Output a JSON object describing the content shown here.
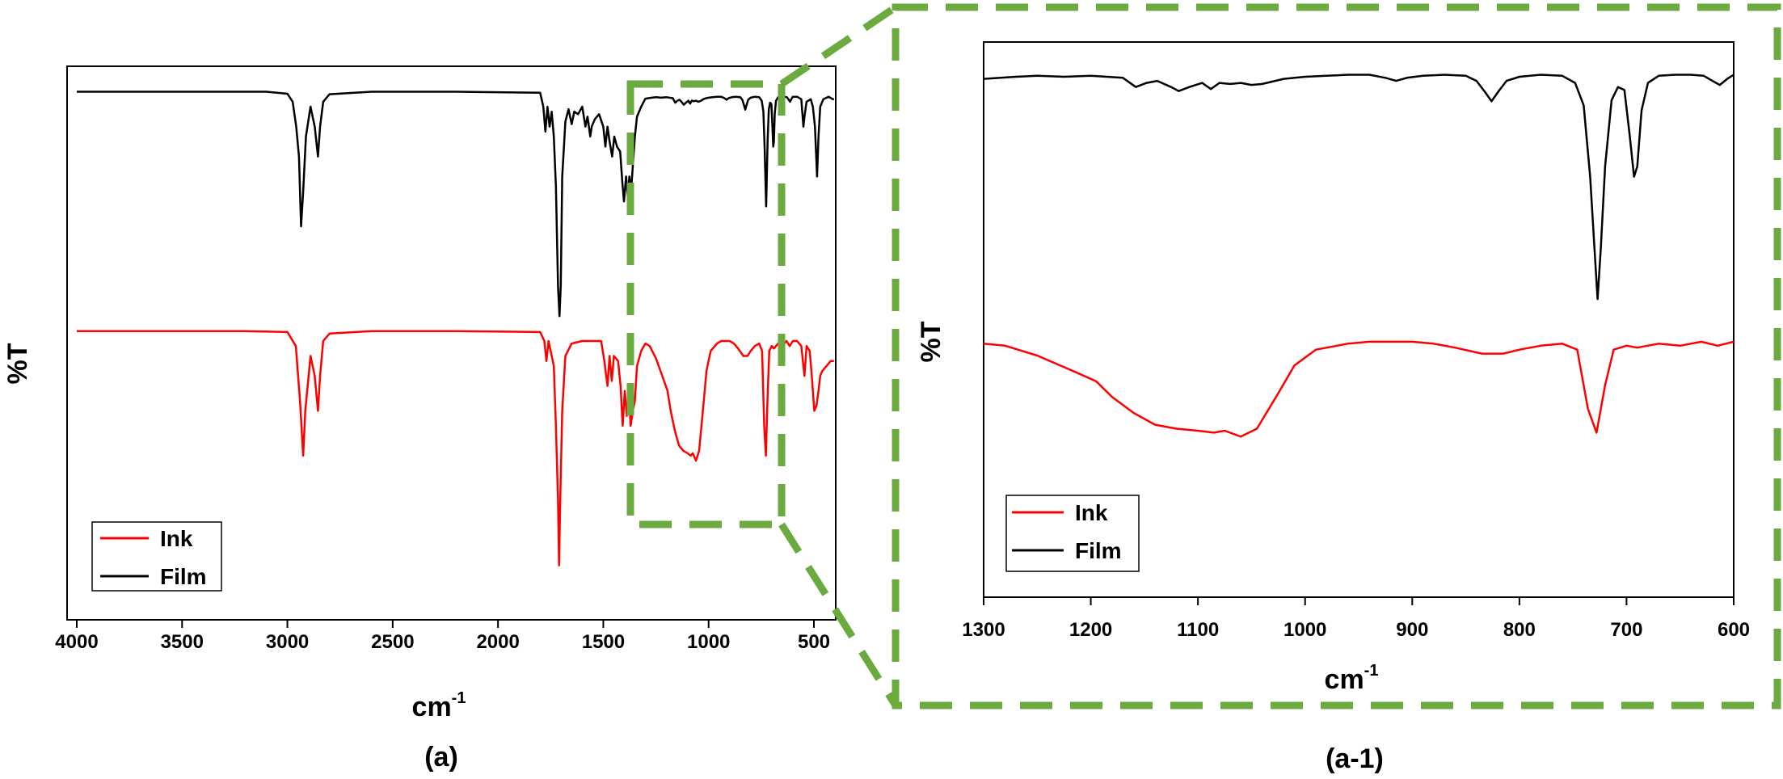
{
  "colors": {
    "ink": "#ff0000",
    "film": "#000000",
    "zoom_box": "#6aaa3f",
    "axis": "#000000"
  },
  "chart_data": [
    {
      "type": "line",
      "caption": "(a)",
      "xlabel": "cm",
      "xlabel_sup": "-1",
      "ylabel": "%T",
      "xlim": [
        4000,
        380
      ],
      "x_ticks": [
        4000,
        3500,
        3000,
        2500,
        2000,
        1500,
        1000,
        500
      ],
      "x_tick_labels": [
        "4000",
        "3500",
        "3000",
        "2500",
        "2000",
        "1500",
        "1000",
        "500"
      ],
      "ylim": [
        0,
        100
      ],
      "y_ticks_shown": false,
      "legend": {
        "placement": "bottom-left",
        "entries": [
          "Ink",
          "Film"
        ]
      },
      "zoom_region": {
        "x_range": [
          1300,
          600
        ]
      },
      "series": [
        {
          "name": "Ink",
          "color": "#ff0000",
          "baseline": 49,
          "points": [
            [
              4000,
              49
            ],
            [
              3500,
              49
            ],
            [
              3200,
              49
            ],
            [
              3000,
              48.8
            ],
            [
              2960,
              46
            ],
            [
              2940,
              35
            ],
            [
              2925,
              24
            ],
            [
              2915,
              33
            ],
            [
              2890,
              44
            ],
            [
              2870,
              40
            ],
            [
              2855,
              33
            ],
            [
              2845,
              40
            ],
            [
              2830,
              47
            ],
            [
              2800,
              48.5
            ],
            [
              2600,
              49
            ],
            [
              2200,
              49
            ],
            [
              1800,
              48.8
            ],
            [
              1780,
              47
            ],
            [
              1770,
              43
            ],
            [
              1760,
              47
            ],
            [
              1745,
              44
            ],
            [
              1735,
              42
            ],
            [
              1725,
              30
            ],
            [
              1715,
              15
            ],
            [
              1710,
              2
            ],
            [
              1705,
              14
            ],
            [
              1695,
              33
            ],
            [
              1680,
              44
            ],
            [
              1650,
              46.5
            ],
            [
              1600,
              47
            ],
            [
              1550,
              47
            ],
            [
              1510,
              47
            ],
            [
              1495,
              43
            ],
            [
              1480,
              38
            ],
            [
              1470,
              44
            ],
            [
              1460,
              39
            ],
            [
              1450,
              44
            ],
            [
              1430,
              43
            ],
            [
              1418,
              38
            ],
            [
              1408,
              30
            ],
            [
              1398,
              37
            ],
            [
              1388,
              32
            ],
            [
              1378,
              36
            ],
            [
              1370,
              30
            ],
            [
              1360,
              33
            ],
            [
              1350,
              35
            ],
            [
              1340,
              42
            ],
            [
              1320,
              45
            ],
            [
              1300,
              46.5
            ],
            [
              1280,
              46
            ],
            [
              1250,
              43.5
            ],
            [
              1220,
              40
            ],
            [
              1195,
              37
            ],
            [
              1180,
              33
            ],
            [
              1160,
              29
            ],
            [
              1140,
              26
            ],
            [
              1120,
              25
            ],
            [
              1100,
              24.5
            ],
            [
              1085,
              24
            ],
            [
              1075,
              24.5
            ],
            [
              1060,
              23
            ],
            [
              1045,
              25
            ],
            [
              1025,
              34
            ],
            [
              1010,
              41
            ],
            [
              990,
              45
            ],
            [
              960,
              46.5
            ],
            [
              940,
              47
            ],
            [
              920,
              47
            ],
            [
              900,
              47
            ],
            [
              880,
              46.5
            ],
            [
              860,
              45.5
            ],
            [
              835,
              44
            ],
            [
              815,
              44
            ],
            [
              800,
              45
            ],
            [
              780,
              46
            ],
            [
              760,
              46.5
            ],
            [
              746,
              45
            ],
            [
              736,
              30
            ],
            [
              728,
              24
            ],
            [
              720,
              36
            ],
            [
              712,
              45
            ],
            [
              700,
              46
            ],
            [
              690,
              45.5
            ],
            [
              670,
              46.5
            ],
            [
              650,
              46
            ],
            [
              630,
              47
            ],
            [
              615,
              46
            ],
            [
              600,
              47
            ],
            [
              580,
              47
            ],
            [
              560,
              46
            ],
            [
              545,
              40
            ],
            [
              535,
              46
            ],
            [
              520,
              45
            ],
            [
              510,
              40
            ],
            [
              498,
              33
            ],
            [
              488,
              34
            ],
            [
              478,
              37
            ],
            [
              470,
              40
            ],
            [
              460,
              41
            ],
            [
              440,
              42
            ],
            [
              420,
              43
            ],
            [
              405,
              43
            ]
          ]
        },
        {
          "name": "Film",
          "color": "#000000",
          "baseline": 97,
          "points": [
            [
              4000,
              97
            ],
            [
              3600,
              97
            ],
            [
              3300,
              97
            ],
            [
              3100,
              97
            ],
            [
              3000,
              96.6
            ],
            [
              2975,
              95
            ],
            [
              2958,
              90
            ],
            [
              2945,
              84
            ],
            [
              2935,
              70
            ],
            [
              2925,
              77
            ],
            [
              2912,
              88
            ],
            [
              2890,
              94
            ],
            [
              2870,
              90
            ],
            [
              2855,
              84
            ],
            [
              2845,
              90
            ],
            [
              2830,
              95
            ],
            [
              2800,
              96.5
            ],
            [
              2600,
              97
            ],
            [
              2200,
              97
            ],
            [
              1800,
              96.8
            ],
            [
              1785,
              94
            ],
            [
              1775,
              89
            ],
            [
              1765,
              94
            ],
            [
              1755,
              90
            ],
            [
              1745,
              93
            ],
            [
              1735,
              88
            ],
            [
              1725,
              78
            ],
            [
              1715,
              58
            ],
            [
              1708,
              52
            ],
            [
              1702,
              58
            ],
            [
              1695,
              80
            ],
            [
              1680,
              91
            ],
            [
              1665,
              93.5
            ],
            [
              1650,
              90.5
            ],
            [
              1638,
              93
            ],
            [
              1620,
              92.5
            ],
            [
              1600,
              94
            ],
            [
              1585,
              90
            ],
            [
              1575,
              92
            ],
            [
              1562,
              88
            ],
            [
              1555,
              90
            ],
            [
              1540,
              91.5
            ],
            [
              1520,
              92.5
            ],
            [
              1500,
              90
            ],
            [
              1490,
              86
            ],
            [
              1480,
              90
            ],
            [
              1470,
              87
            ],
            [
              1458,
              84
            ],
            [
              1448,
              88
            ],
            [
              1435,
              86
            ],
            [
              1420,
              85
            ],
            [
              1410,
              79
            ],
            [
              1402,
              75
            ],
            [
              1392,
              80
            ],
            [
              1384,
              76
            ],
            [
              1376,
              80
            ],
            [
              1368,
              77
            ],
            [
              1360,
              82
            ],
            [
              1350,
              88
            ],
            [
              1340,
              92
            ],
            [
              1320,
              94
            ],
            [
              1300,
              95.6
            ],
            [
              1270,
              95.8
            ],
            [
              1250,
              95.9
            ],
            [
              1225,
              95.8
            ],
            [
              1200,
              95.9
            ],
            [
              1170,
              95.7
            ],
            [
              1158,
              94.8
            ],
            [
              1148,
              95.2
            ],
            [
              1138,
              95.4
            ],
            [
              1125,
              94.8
            ],
            [
              1118,
              94.4
            ],
            [
              1108,
              94.8
            ],
            [
              1096,
              95.2
            ],
            [
              1088,
              94.6
            ],
            [
              1080,
              95.2
            ],
            [
              1070,
              95.1
            ],
            [
              1060,
              95.2
            ],
            [
              1050,
              95
            ],
            [
              1040,
              95.1
            ],
            [
              1032,
              95.3
            ],
            [
              1020,
              95.6
            ],
            [
              1000,
              95.8
            ],
            [
              980,
              95.9
            ],
            [
              960,
              96
            ],
            [
              940,
              96
            ],
            [
              925,
              95.7
            ],
            [
              915,
              95.4
            ],
            [
              905,
              95.7
            ],
            [
              890,
              95.9
            ],
            [
              870,
              96
            ],
            [
              850,
              95.9
            ],
            [
              840,
              95.4
            ],
            [
              832,
              94.3
            ],
            [
              826,
              93.4
            ],
            [
              820,
              94.3
            ],
            [
              812,
              95.4
            ],
            [
              800,
              95.8
            ],
            [
              780,
              96
            ],
            [
              760,
              95.9
            ],
            [
              748,
              95.2
            ],
            [
              740,
              93
            ],
            [
              734,
              86
            ],
            [
              730,
              79
            ],
            [
              727,
              74
            ],
            [
              724,
              79
            ],
            [
              720,
              87
            ],
            [
              714,
              93.5
            ],
            [
              708,
              94.8
            ],
            [
              702,
              94.5
            ],
            [
              697,
              90
            ],
            [
              693,
              86
            ],
            [
              690,
              87
            ],
            [
              686,
              92.5
            ],
            [
              680,
              95.2
            ],
            [
              670,
              95.9
            ],
            [
              655,
              96
            ],
            [
              640,
              96
            ],
            [
              628,
              95.9
            ],
            [
              618,
              95.3
            ],
            [
              613,
              95
            ],
            [
              606,
              95.6
            ],
            [
              600,
              96
            ],
            [
              580,
              96
            ],
            [
              560,
              95.5
            ],
            [
              550,
              90
            ],
            [
              545,
              92
            ],
            [
              535,
              95
            ],
            [
              515,
              95.5
            ],
            [
              505,
              94
            ],
            [
              495,
              90
            ],
            [
              485,
              80
            ],
            [
              478,
              88
            ],
            [
              470,
              94
            ],
            [
              455,
              95.5
            ],
            [
              430,
              96
            ],
            [
              410,
              95.5
            ],
            [
              405,
              95.5
            ]
          ]
        }
      ]
    },
    {
      "type": "line",
      "caption": "(a-1)",
      "xlabel": "cm",
      "xlabel_sup": "-1",
      "ylabel": "%T",
      "xlim": [
        1300,
        600
      ],
      "x_ticks": [
        1300,
        1200,
        1100,
        1000,
        900,
        800,
        700,
        600
      ],
      "x_tick_labels": [
        "1300",
        "1200",
        "1100",
        "1000",
        "900",
        "800",
        "700",
        "600"
      ],
      "ylim": [
        0,
        100
      ],
      "y_ticks_shown": false,
      "legend": {
        "placement": "bottom-left",
        "entries": [
          "Ink",
          "Film"
        ]
      }
    }
  ]
}
